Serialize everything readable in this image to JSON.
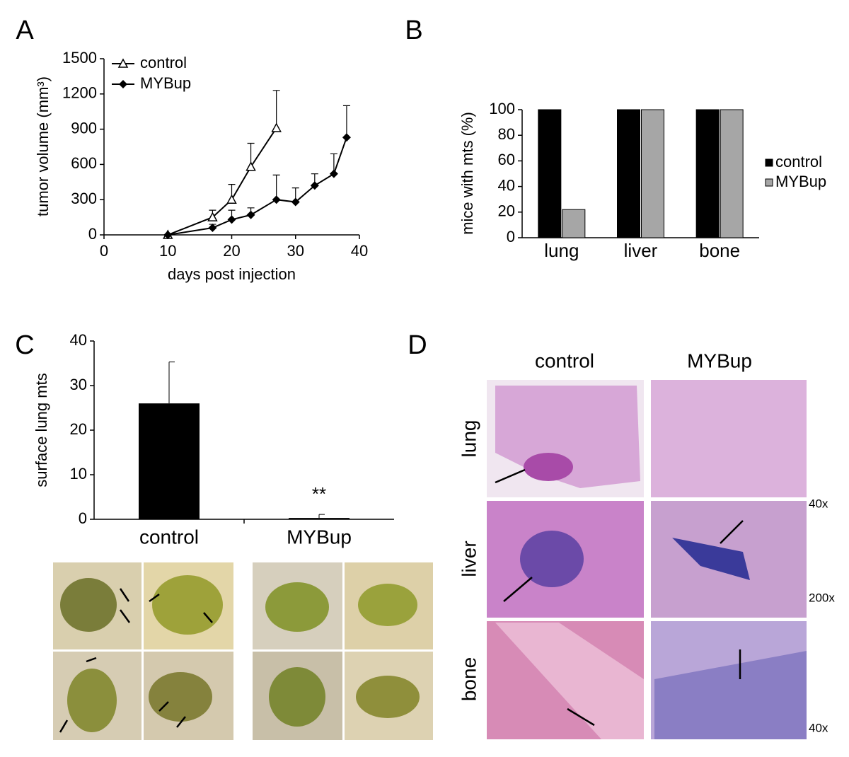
{
  "panel_labels": [
    "A",
    "B",
    "C",
    "D"
  ],
  "chart_data": [
    {
      "type": "line",
      "xlabel": "days post injection",
      "ylabel": "tumor volume (mm³)",
      "xlim": [
        0,
        40
      ],
      "xticks": [
        0,
        10,
        20,
        30,
        40
      ],
      "ylim": [
        0,
        1500
      ],
      "yticks": [
        0,
        300,
        600,
        900,
        1200,
        1500
      ],
      "legend": "upper left",
      "series": [
        {
          "name": "control",
          "color": "#000000",
          "marker": "open-triangle",
          "x": [
            10,
            17,
            20,
            23,
            27
          ],
          "values": [
            0,
            150,
            300,
            580,
            910
          ],
          "errors": [
            0,
            60,
            130,
            200,
            320
          ]
        },
        {
          "name": "MYBup",
          "color": "#000000",
          "marker": "filled-diamond",
          "x": [
            10,
            17,
            20,
            23,
            27,
            30,
            33,
            36,
            38
          ],
          "values": [
            0,
            60,
            130,
            170,
            300,
            280,
            420,
            520,
            830
          ],
          "errors": [
            0,
            30,
            80,
            60,
            210,
            120,
            100,
            170,
            270
          ]
        }
      ]
    },
    {
      "type": "grouped-bar",
      "ylabel": "mice with mts (%)",
      "categories": [
        "lung",
        "liver",
        "bone"
      ],
      "ylim": [
        0,
        100
      ],
      "yticks": [
        0,
        20,
        40,
        60,
        80,
        100
      ],
      "legend": "right",
      "series": [
        {
          "name": "control",
          "color": "#000000",
          "values": [
            100,
            100,
            100
          ]
        },
        {
          "name": "MYBup",
          "color": "#a6a6a6",
          "values": [
            22,
            100,
            100
          ]
        }
      ]
    },
    {
      "type": "bar",
      "ylabel": "surface lung mts",
      "categories": [
        "control",
        "MYBup"
      ],
      "values": [
        26,
        0.3
      ],
      "errors": [
        9.3,
        0.8
      ],
      "color": "#000000",
      "ylim": [
        0,
        40
      ],
      "yticks": [
        0,
        10,
        20,
        30,
        40
      ],
      "annotation": "**"
    }
  ],
  "histology": {
    "columns": [
      "control",
      "MYBup"
    ],
    "rows": [
      {
        "label": "lung",
        "magnification": "40x"
      },
      {
        "label": "liver",
        "magnification": "200x"
      },
      {
        "label": "bone",
        "magnification": "40x"
      }
    ]
  }
}
